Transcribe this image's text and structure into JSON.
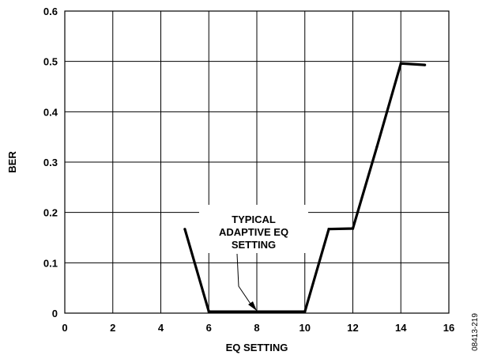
{
  "chart_data": {
    "type": "line",
    "xlabel": "EQ SETTING",
    "ylabel": "BER",
    "xlim": [
      0,
      16
    ],
    "ylim": [
      0,
      0.6
    ],
    "grid": true,
    "x_ticks": [
      0,
      2,
      4,
      6,
      8,
      10,
      12,
      14,
      16
    ],
    "y_ticks": [
      0,
      0.1,
      0.2,
      0.3,
      0.4,
      0.5,
      0.6
    ],
    "x_tick_labels": [
      "0",
      "2",
      "4",
      "6",
      "8",
      "10",
      "12",
      "14",
      "16"
    ],
    "y_tick_labels": [
      "0",
      "0.1",
      "0.2",
      "0.3",
      "0.4",
      "0.5",
      "0.6"
    ],
    "series": [
      {
        "x": [
          5,
          6,
          7,
          8,
          9,
          10,
          11,
          12,
          13,
          14,
          15
        ],
        "y": [
          0.167,
          0.003,
          0.003,
          0.003,
          0.003,
          0.003,
          0.167,
          0.168,
          0.33,
          0.496,
          0.493
        ]
      }
    ],
    "annotation": {
      "lines": [
        "TYPICAL",
        "ADAPTIVE EQ",
        "SETTING"
      ],
      "arrow_to": [
        8,
        0.003
      ]
    },
    "figure_code": "08413-219"
  }
}
